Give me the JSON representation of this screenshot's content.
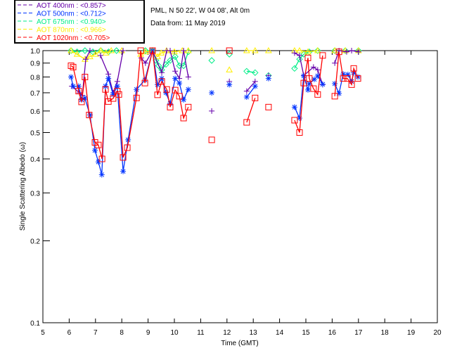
{
  "header": {
    "site": "PML, N 50 22', W 04 08', Alt 0m",
    "date": "Data from: 11 May 2019"
  },
  "chart_data": {
    "type": "line",
    "title": "",
    "xlabel": "Time (GMT)",
    "ylabel": "Single Scattering Albedo (ω)",
    "xlim": [
      5,
      20
    ],
    "ylim": [
      0.1,
      1.0
    ],
    "yscale": "log",
    "xticks": [
      "5",
      "6",
      "7",
      "8",
      "9",
      "10",
      "11",
      "12",
      "13",
      "14",
      "15",
      "16",
      "17",
      "18",
      "19",
      "20"
    ],
    "yticks": [
      "0.1",
      "0.2",
      "0.3",
      "0.4",
      "0.5",
      "0.6",
      "0.7",
      "0.8",
      "0.9",
      "1.0"
    ],
    "legend_position": "top-left",
    "series": [
      {
        "name": "AOT  400nm : <0.857>",
        "color": "#6600aa",
        "marker": "plus",
        "x": [
          6.1,
          6.39,
          6.5,
          6.63,
          6.79,
          7.19,
          7.49,
          7.67,
          7.83,
          8.05,
          8.74,
          8.9,
          9.17,
          9.52,
          9.71,
          9.84,
          10.03,
          10.19,
          10.35,
          10.53,
          11.42,
          12.09,
          12.75,
          13.07,
          13.58,
          14.57,
          14.76,
          14.92,
          15.29,
          15.45,
          15.64,
          16.1,
          16.26,
          16.55,
          16.74,
          17.0
        ],
        "y": [
          0.74,
          0.7,
          0.685,
          0.93,
          1.0,
          0.96,
          0.82,
          0.7,
          0.77,
          1.0,
          0.94,
          0.9,
          1.0,
          0.83,
          1.0,
          1.0,
          0.84,
          0.79,
          1.0,
          0.8,
          0.6,
          0.77,
          0.71,
          0.77,
          0.81,
          0.98,
          0.96,
          0.81,
          0.87,
          0.85,
          0.75,
          0.9,
          1.0,
          0.99,
          1.0,
          0.99
        ]
      },
      {
        "name": "AOT  500nm : <0.712>",
        "color": "#0033ff",
        "marker": "star",
        "x": [
          6.07,
          6.15,
          6.36,
          6.47,
          6.6,
          6.79,
          6.98,
          7.11,
          7.24,
          7.38,
          7.49,
          7.67,
          7.83,
          8.05,
          8.24,
          8.56,
          8.88,
          9.17,
          9.36,
          9.52,
          9.68,
          9.84,
          10.03,
          10.19,
          10.35,
          10.53,
          11.42,
          12.09,
          12.75,
          13.07,
          13.58,
          14.57,
          14.76,
          14.92,
          15.08,
          15.13,
          15.32,
          15.45,
          15.64,
          16.1,
          16.26,
          16.42,
          16.6,
          16.74,
          16.82,
          16.98
        ],
        "y": [
          0.8,
          0.74,
          0.74,
          0.66,
          0.67,
          0.58,
          0.43,
          0.39,
          0.35,
          0.74,
          0.79,
          0.69,
          0.74,
          0.36,
          0.47,
          0.72,
          0.78,
          1.0,
          0.75,
          0.79,
          0.7,
          0.64,
          0.79,
          0.76,
          0.66,
          0.72,
          0.7,
          0.75,
          0.675,
          0.74,
          0.79,
          0.62,
          0.565,
          0.807,
          0.717,
          0.756,
          0.784,
          0.807,
          0.752,
          0.756,
          0.696,
          0.82,
          0.817,
          0.77,
          0.83,
          0.8
        ]
      },
      {
        "name": "AOT  675nm : <0.940>",
        "color": "#00ee88",
        "marker": "diamond",
        "x": [
          6.07,
          6.3,
          6.6,
          6.9,
          7.2,
          7.5,
          7.8,
          8.9,
          9.17,
          9.3,
          9.4,
          9.52,
          9.68,
          9.84,
          10.03,
          10.19,
          10.35,
          10.53,
          11.42,
          12.09,
          12.75,
          13.07,
          13.58,
          14.57,
          14.76,
          14.92,
          15.13,
          15.45,
          16.1,
          16.5,
          17.0
        ],
        "y": [
          1.0,
          0.99,
          1.0,
          0.99,
          1.0,
          0.99,
          1.0,
          1.0,
          1.0,
          0.92,
          0.88,
          0.85,
          0.89,
          0.92,
          0.95,
          0.88,
          0.88,
          0.99,
          0.92,
          0.97,
          0.84,
          0.83,
          0.81,
          0.86,
          0.93,
          0.97,
          0.99,
          1.0,
          1.0,
          1.0,
          1.0
        ]
      },
      {
        "name": "AOT  870nm : <0.966>",
        "color": "#ffee00",
        "marker": "triangle",
        "x": [
          6.07,
          6.3,
          6.6,
          6.79,
          7.0,
          7.2,
          7.4,
          7.6,
          8.0,
          8.72,
          8.9,
          9.17,
          9.36,
          9.5,
          9.7,
          10.0,
          10.3,
          10.53,
          11.42,
          12.09,
          12.75,
          13.07,
          13.58,
          14.57,
          14.76,
          15.08,
          15.45,
          16.1,
          16.5,
          17.0
        ],
        "y": [
          1.0,
          0.97,
          0.93,
          0.95,
          0.97,
          1.0,
          0.98,
          1.0,
          1.0,
          0.97,
          0.99,
          1.0,
          0.95,
          0.98,
          1.0,
          0.99,
          1.0,
          1.0,
          1.0,
          0.85,
          1.0,
          1.0,
          1.0,
          1.0,
          1.0,
          0.99,
          1.0,
          1.0,
          1.0,
          1.0
        ]
      },
      {
        "name": "AOT 1020nm : <0.705>",
        "color": "#ff0000",
        "marker": "square",
        "x": [
          6.07,
          6.15,
          6.36,
          6.47,
          6.6,
          6.76,
          6.98,
          7.11,
          7.25,
          7.38,
          7.49,
          7.67,
          7.83,
          7.89,
          8.05,
          8.21,
          8.56,
          8.72,
          8.88,
          9.17,
          9.36,
          9.52,
          9.71,
          9.84,
          10.03,
          10.19,
          10.35,
          10.53,
          11.42,
          12.09,
          12.75,
          13.07,
          13.58,
          14.57,
          14.76,
          14.92,
          15.08,
          15.13,
          15.29,
          15.45,
          15.64,
          16.1,
          16.26,
          16.42,
          16.58,
          16.74,
          16.82,
          16.98
        ],
        "y": [
          0.88,
          0.87,
          0.71,
          0.648,
          0.8,
          0.58,
          0.46,
          0.45,
          0.4,
          0.72,
          0.65,
          0.667,
          0.71,
          0.69,
          0.405,
          0.44,
          0.67,
          1.0,
          0.76,
          1.0,
          0.688,
          0.77,
          0.72,
          0.62,
          0.716,
          0.68,
          0.565,
          0.62,
          0.47,
          1.0,
          0.545,
          0.67,
          0.62,
          0.555,
          0.5,
          0.76,
          0.94,
          0.79,
          0.725,
          0.69,
          0.96,
          0.68,
          0.99,
          0.79,
          0.79,
          0.75,
          0.86,
          0.79
        ]
      }
    ]
  }
}
